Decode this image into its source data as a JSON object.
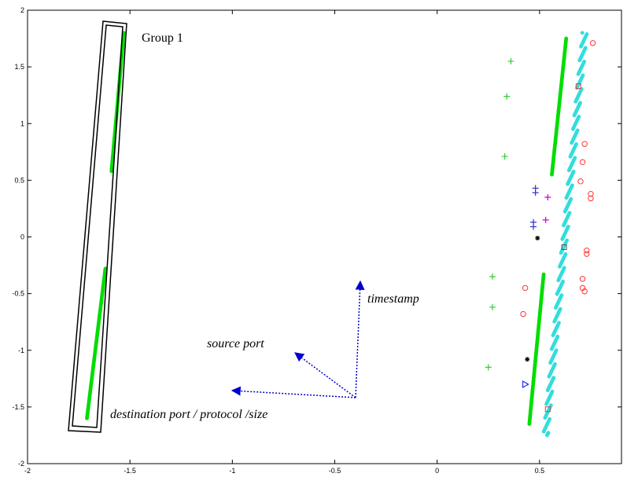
{
  "chart_data": {
    "type": "scatter",
    "title": "",
    "xlabel": "",
    "ylabel": "",
    "xlim": [
      -2,
      0.9
    ],
    "ylim": [
      -2,
      2
    ],
    "xticks": [
      "-2",
      "-1.5",
      "-1",
      "-0.5",
      "0",
      "0.5"
    ],
    "yticks": [
      "2",
      "1.5",
      "1",
      "0.5",
      "0",
      "-0.5",
      "-1",
      "-1.5",
      "-2"
    ],
    "grid": false,
    "series": [
      {
        "marker": "dot",
        "color": "#00dd00",
        "segments": [
          [
            -1.53,
            1.8,
            -1.59,
            0.58
          ],
          [
            -1.62,
            -0.28,
            -1.71,
            -1.6
          ]
        ]
      },
      {
        "marker": "dot",
        "color": "#00dd00",
        "segments": [
          [
            0.63,
            1.75,
            0.56,
            0.55
          ],
          [
            0.52,
            -0.33,
            0.45,
            -1.65
          ]
        ]
      },
      {
        "marker": "dot",
        "color": "#33dddd",
        "segments": [
          [
            0.72,
            1.8,
            0.53,
            -1.75
          ]
        ]
      },
      {
        "marker": "plus",
        "color": "#33cc33",
        "points": [
          [
            0.36,
            1.55
          ],
          [
            0.34,
            1.24
          ],
          [
            0.33,
            0.71
          ],
          [
            0.27,
            -0.35
          ],
          [
            0.27,
            -0.62
          ],
          [
            0.25,
            -1.15
          ]
        ]
      },
      {
        "marker": "circle",
        "color": "#ff3333",
        "points": [
          [
            0.76,
            1.71
          ],
          [
            0.72,
            0.82
          ],
          [
            0.71,
            0.66
          ],
          [
            0.7,
            0.49
          ],
          [
            0.75,
            0.38
          ],
          [
            0.75,
            0.34
          ],
          [
            0.73,
            -0.12
          ],
          [
            0.73,
            -0.15
          ],
          [
            0.71,
            -0.37
          ],
          [
            0.71,
            -0.45
          ],
          [
            0.72,
            -0.48
          ],
          [
            0.43,
            -0.45
          ],
          [
            0.42,
            -0.68
          ]
        ]
      },
      {
        "marker": "square",
        "color": "#cc4444",
        "points": [
          [
            0.69,
            1.33
          ],
          [
            0.54,
            -1.52
          ]
        ]
      },
      {
        "marker": "square",
        "color": "#555555",
        "points": [
          [
            0.62,
            -0.09
          ]
        ]
      },
      {
        "marker": "plus",
        "color": "#3333cc",
        "points": [
          [
            0.48,
            0.43
          ],
          [
            0.48,
            0.39
          ],
          [
            0.47,
            0.13
          ],
          [
            0.47,
            0.09
          ]
        ]
      },
      {
        "marker": "plus",
        "color": "#cc00cc",
        "points": [
          [
            0.54,
            0.35
          ],
          [
            0.53,
            0.15
          ]
        ]
      },
      {
        "marker": "star",
        "color": "#000000",
        "points": [
          [
            0.49,
            -0.01
          ],
          [
            0.44,
            -1.08
          ]
        ]
      },
      {
        "marker": "triangle-right",
        "color": "#0000ff",
        "points": [
          [
            0.43,
            -1.3
          ]
        ]
      }
    ],
    "annotations": {
      "group_label": "Group 1",
      "timestamp": "timestamp",
      "source_port": "source port",
      "destination": "destination port / protocol /size"
    },
    "colors": {
      "group_box": "#000000",
      "arrow": "#0000cc"
    }
  }
}
